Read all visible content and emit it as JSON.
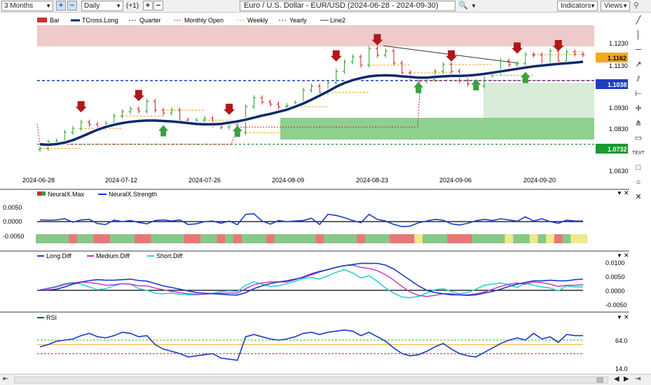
{
  "toolbar": {
    "period": "3 Months",
    "interval": "Daily",
    "offset": "(+1)",
    "title": "Euro / U.S. Dollar - EUR/USD (2024-06-28 - 2024-09-30)",
    "indicators_label": "Indicators",
    "views_label": "Views"
  },
  "legend": {
    "bar": "Bar",
    "tcross": "TCross.Long",
    "quarter": "Quarter",
    "monthly_open": "Monthly Open",
    "weekly": "Weekly",
    "yearly": "Yearly",
    "line2": "Line2"
  },
  "price_axis": {
    "ticks": [
      "1.1230",
      "1.1130",
      "1.0930",
      "1.0830",
      "1.0630"
    ],
    "badges": {
      "last": "1.1162",
      "yearly": "1.1038",
      "quarter": "1.0732"
    },
    "badge_colors": {
      "last": "#f4a820",
      "yearly": "#1f3fbf",
      "quarter": "#1a9a30"
    }
  },
  "date_axis": [
    "2024-06-28",
    "2024-07-12",
    "2024-07-26",
    "2024-08-09",
    "2024-08-23",
    "2024-09-06",
    "2024-09-20"
  ],
  "neural": {
    "legend_max": "NeuralX.Max",
    "legend_strength": "NeuralX.Strength",
    "ticks": [
      "0.0050",
      "0.0000",
      "-0.0050"
    ]
  },
  "diff": {
    "legend_long": "Long.Diff",
    "legend_medium": "Medium.Diff",
    "legend_short": "Short.Diff",
    "ticks": [
      "0.0100",
      "0.0050",
      "0.0000",
      "-0.0050"
    ]
  },
  "rsi": {
    "legend": "RSI",
    "ticks": [
      "64.0",
      "14.0"
    ]
  },
  "chart_data": {
    "type": "candlestick",
    "title": "Euro / U.S. Dollar - EUR/USD (2024-06-28 - 2024-09-30)",
    "dates": [
      "2024-06-28",
      "2024-07-01",
      "2024-07-02",
      "2024-07-03",
      "2024-07-04",
      "2024-07-05",
      "2024-07-08",
      "2024-07-09",
      "2024-07-10",
      "2024-07-11",
      "2024-07-12",
      "2024-07-15",
      "2024-07-16",
      "2024-07-17",
      "2024-07-18",
      "2024-07-19",
      "2024-07-22",
      "2024-07-23",
      "2024-07-24",
      "2024-07-25",
      "2024-07-26",
      "2024-07-29",
      "2024-07-30",
      "2024-07-31",
      "2024-08-01",
      "2024-08-02",
      "2024-08-05",
      "2024-08-06",
      "2024-08-07",
      "2024-08-08",
      "2024-08-09",
      "2024-08-12",
      "2024-08-13",
      "2024-08-14",
      "2024-08-15",
      "2024-08-16",
      "2024-08-19",
      "2024-08-20",
      "2024-08-21",
      "2024-08-22",
      "2024-08-23",
      "2024-08-26",
      "2024-08-27",
      "2024-08-28",
      "2024-08-29",
      "2024-08-30",
      "2024-09-02",
      "2024-09-03",
      "2024-09-04",
      "2024-09-05",
      "2024-09-06",
      "2024-09-09",
      "2024-09-10",
      "2024-09-11",
      "2024-09-12",
      "2024-09-13",
      "2024-09-16",
      "2024-09-17",
      "2024-09-18",
      "2024-09-19",
      "2024-09-20",
      "2024-09-23",
      "2024-09-24",
      "2024-09-25",
      "2024-09-26",
      "2024-09-27",
      "2024-09-30"
    ],
    "close": [
      1.0712,
      1.0742,
      1.0748,
      1.079,
      1.0808,
      1.0838,
      1.0828,
      1.0812,
      1.0832,
      1.0868,
      1.0888,
      1.0902,
      1.0892,
      1.0938,
      1.0896,
      1.0882,
      1.0896,
      1.0848,
      1.0838,
      1.0848,
      1.0856,
      1.0826,
      1.0815,
      1.0826,
      1.0788,
      1.0912,
      1.0955,
      1.0935,
      1.0925,
      1.0912,
      1.0918,
      1.0932,
      1.0992,
      1.1011,
      1.0981,
      1.1028,
      1.1082,
      1.1128,
      1.1152,
      1.1112,
      1.1192,
      1.116,
      1.118,
      1.1122,
      1.1075,
      1.1047,
      1.1036,
      1.1043,
      1.1082,
      1.1115,
      1.1082,
      1.1037,
      1.1022,
      1.1012,
      1.1063,
      1.1075,
      1.1132,
      1.1115,
      1.112,
      1.1162,
      1.1161,
      1.1112,
      1.118,
      1.1132,
      1.1176,
      1.1165,
      1.1162
    ],
    "tcross_long": [
      1.0732,
      1.073,
      1.0733,
      1.074,
      1.0752,
      1.0768,
      1.0785,
      1.0802,
      1.0815,
      1.0826,
      1.0834,
      1.084,
      1.0844,
      1.0846,
      1.0846,
      1.0844,
      1.0842,
      1.0838,
      1.0834,
      1.083,
      1.0828,
      1.0828,
      1.083,
      1.0836,
      1.0842,
      1.085,
      1.086,
      1.087,
      1.0878,
      1.0888,
      1.0898,
      1.0912,
      1.0928,
      1.0946,
      1.0966,
      1.0986,
      1.1008,
      1.1026,
      1.104,
      1.105,
      1.1058,
      1.1062,
      1.1063,
      1.1062,
      1.1058,
      1.1055,
      1.1052,
      1.1052,
      1.1055,
      1.1058,
      1.106,
      1.106,
      1.1062,
      1.1065,
      1.107,
      1.1076,
      1.1082,
      1.1088,
      1.1094,
      1.11,
      1.1106,
      1.111,
      1.1114,
      1.1118,
      1.1121,
      1.1124,
      1.1128
    ],
    "levels": {
      "yearly": 1.1038,
      "quarter": 1.0732
    },
    "ylim": [
      1.06,
      1.129
    ],
    "neural_strength": [
      0.0006,
      0.0005,
      0.0006,
      0.001,
      -0.0002,
      0.0006,
      0.0008,
      -0.0007,
      -0.001,
      0.0005,
      0.0,
      0.0004,
      -0.0003,
      -0.0008,
      0.0004,
      0.0006,
      0.0002,
      0.0006,
      -0.001,
      -0.0008,
      0.0,
      0.0002,
      -0.0006,
      0.0002,
      -0.0011,
      0.0026,
      0.0028,
      0.0002,
      -0.0009,
      0.0004,
      0.0,
      0.0002,
      0.0004,
      0.0012,
      -0.001,
      0.0026,
      0.0022,
      0.0014,
      0.0004,
      -0.0004,
      0.0026,
      0.0008,
      0.0002,
      -0.001,
      -0.0018,
      -0.0016,
      -0.0004,
      0.0002,
      0.0008,
      0.0005,
      -0.0008,
      -0.0012,
      -0.0006,
      0.0003,
      0.0008,
      0.0004,
      0.001,
      0.0006,
      0.0001,
      0.0017,
      0.0002,
      0.001,
      0.0,
      -0.0006,
      0.0005,
      0.0002,
      0.0002
    ],
    "neural_state": [
      1,
      1,
      1,
      1,
      0,
      1,
      1,
      0,
      0,
      1,
      1,
      1,
      0,
      0,
      1,
      1,
      1,
      1,
      0,
      0,
      1,
      1,
      0,
      1,
      0,
      1,
      1,
      1,
      0,
      1,
      1,
      1,
      1,
      1,
      0,
      1,
      1,
      1,
      1,
      0,
      1,
      1,
      1,
      0,
      0,
      0,
      2,
      1,
      1,
      1,
      0,
      0,
      0,
      1,
      1,
      1,
      1,
      2,
      1,
      1,
      2,
      1,
      2,
      0,
      1,
      2,
      2
    ],
    "long_diff": [
      0.0,
      0.0001,
      0.0004,
      0.0012,
      0.0022,
      0.0029,
      0.0035,
      0.0038,
      0.0036,
      0.0036,
      0.0038,
      0.004,
      0.0035,
      0.0033,
      0.0024,
      0.0016,
      0.001,
      0.0004,
      -0.0002,
      -0.0008,
      -0.001,
      -0.0012,
      -0.0014,
      -0.0016,
      -0.0017,
      -0.0008,
      0.0006,
      0.0016,
      0.0024,
      0.003,
      0.0034,
      0.004,
      0.0046,
      0.0056,
      0.0066,
      0.0074,
      0.0082,
      0.0088,
      0.0092,
      0.0096,
      0.0096,
      0.0096,
      0.009,
      0.0076,
      0.0056,
      0.0036,
      0.0016,
      0.0,
      -0.0008,
      -0.0012,
      -0.0016,
      -0.0016,
      -0.0018,
      -0.0016,
      -0.001,
      -0.0004,
      0.0004,
      0.0014,
      0.0022,
      0.0028,
      0.0034,
      0.0034,
      0.0036,
      0.0034,
      0.0034,
      0.0038,
      0.004
    ],
    "medium_diff": [
      0.0002,
      0.0006,
      0.0012,
      0.002,
      0.0026,
      0.003,
      0.0028,
      0.0024,
      0.0018,
      0.002,
      0.0024,
      0.0022,
      0.0016,
      0.0016,
      0.0008,
      0.0002,
      -0.0004,
      -0.0008,
      -0.0012,
      -0.0014,
      -0.0014,
      -0.0012,
      -0.001,
      -0.001,
      -0.001,
      0.0006,
      0.002,
      0.0026,
      0.003,
      0.003,
      0.003,
      0.0038,
      0.0048,
      0.006,
      0.0068,
      0.0074,
      0.0082,
      0.0088,
      0.009,
      0.0082,
      0.0078,
      0.007,
      0.0056,
      0.0036,
      0.0014,
      -0.0006,
      -0.0018,
      -0.0022,
      -0.0018,
      -0.0012,
      -0.0012,
      -0.0016,
      -0.0016,
      -0.0012,
      -0.0006,
      0.0004,
      0.0014,
      0.0022,
      0.0026,
      0.0022,
      0.003,
      0.0028,
      0.0022,
      0.0014,
      0.0018,
      0.0018,
      0.002
    ],
    "short_diff": [
      0.0,
      0.0008,
      0.0014,
      0.0024,
      0.0028,
      0.0022,
      0.0012,
      0.0002,
      0.0006,
      0.0016,
      0.0024,
      0.0022,
      0.0006,
      0.0,
      -0.001,
      -0.0012,
      -0.001,
      -0.0014,
      -0.0016,
      -0.0016,
      -0.0014,
      -0.001,
      -0.0004,
      -0.0002,
      -0.0004,
      0.0018,
      0.003,
      0.0022,
      0.0014,
      0.0016,
      0.0024,
      0.0032,
      0.0042,
      0.0046,
      0.004,
      0.0052,
      0.0064,
      0.0074,
      0.0062,
      0.0044,
      0.0052,
      0.0032,
      0.0008,
      -0.001,
      -0.0024,
      -0.0026,
      -0.0022,
      -0.001,
      0.0002,
      0.0006,
      -0.0004,
      -0.0012,
      -0.0008,
      0.0004,
      0.0018,
      0.0022,
      0.0026,
      0.002,
      0.001,
      0.0026,
      0.0018,
      0.0012,
      0.0008,
      -0.0002,
      0.0016,
      0.0012,
      0.0012
    ],
    "rsi": [
      52,
      56,
      62,
      64,
      66,
      72,
      76,
      70,
      68,
      72,
      78,
      76,
      70,
      72,
      56,
      48,
      44,
      40,
      34,
      36,
      38,
      40,
      32,
      30,
      28,
      70,
      74,
      70,
      66,
      64,
      66,
      70,
      76,
      78,
      74,
      78,
      80,
      82,
      80,
      72,
      78,
      70,
      62,
      50,
      40,
      36,
      38,
      44,
      52,
      58,
      48,
      40,
      36,
      34,
      42,
      50,
      58,
      64,
      68,
      64,
      76,
      66,
      70,
      60,
      74,
      72,
      72
    ]
  }
}
